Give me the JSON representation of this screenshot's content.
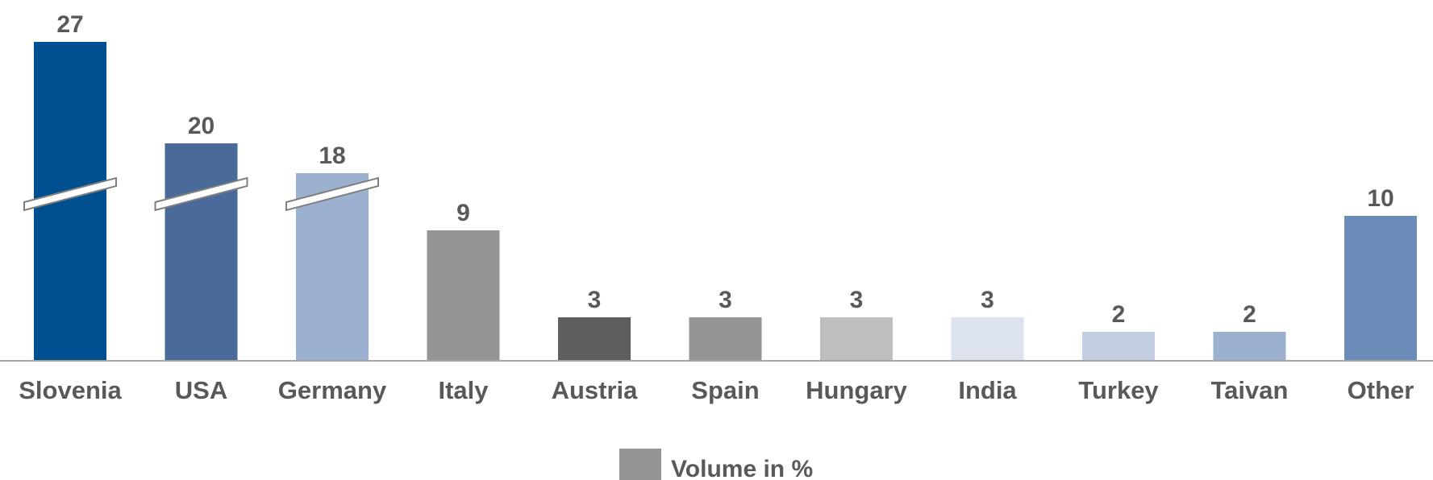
{
  "chart_data": {
    "type": "bar",
    "categories": [
      "Slovenia",
      "USA",
      "Germany",
      "Italy",
      "Austria",
      "Spain",
      "Hungary",
      "India",
      "Turkey",
      "Taivan",
      "Other"
    ],
    "series": [
      {
        "name": "Volume in %",
        "values": [
          27,
          20,
          18,
          9,
          3,
          3,
          3,
          3,
          2,
          2,
          10
        ],
        "colors": [
          "#004F91",
          "#4A6A99",
          "#9CB0CF",
          "#959595",
          "#5E5E5E",
          "#959595",
          "#BEBEBE",
          "#DDE3EE",
          "#C3CEE2",
          "#9CB0CF",
          "#6B8CB8"
        ]
      }
    ],
    "axis_breaks": [
      "Slovenia",
      "USA",
      "Germany"
    ],
    "legend": {
      "label": "Volume in %",
      "color": "#959595",
      "position": "bottom"
    },
    "grid": false
  }
}
